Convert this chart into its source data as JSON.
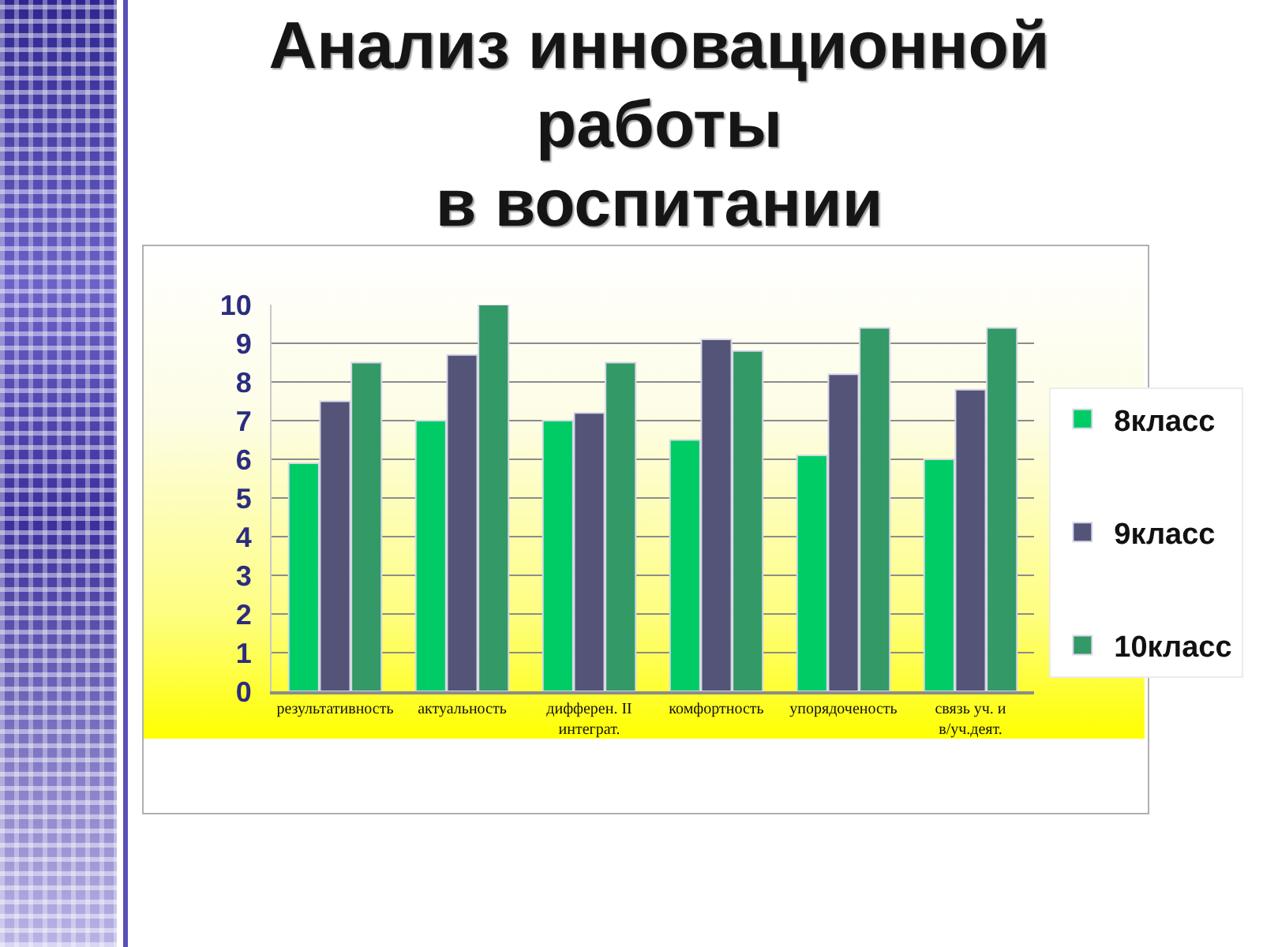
{
  "chart_data": {
    "type": "bar",
    "title": "Анализ инновационной работы\nв воспитании",
    "categories": [
      "результативность",
      "актуальность",
      "дифферен. II интеграт.",
      "комфортность",
      "упорядоченость",
      "связь уч. и в/уч.деят."
    ],
    "series": [
      {
        "name": "8класс",
        "color": "#00cc66",
        "values": [
          5.9,
          7.0,
          7.0,
          6.5,
          6.1,
          6.0
        ]
      },
      {
        "name": "9класс",
        "color": "#545479",
        "values": [
          7.5,
          8.7,
          7.2,
          9.1,
          8.2,
          7.8
        ]
      },
      {
        "name": "10класс",
        "color": "#339966",
        "values": [
          8.5,
          10,
          8.5,
          8.8,
          9.4,
          9.4
        ]
      }
    ],
    "ylim": [
      0,
      10
    ],
    "yticks": [
      0,
      1,
      2,
      3,
      4,
      5,
      6,
      7,
      8,
      9,
      10
    ],
    "grid": "y",
    "legend": "right"
  }
}
